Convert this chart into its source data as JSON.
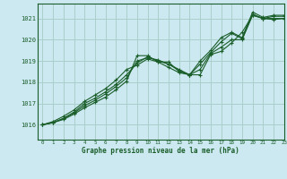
{
  "title": "Graphe pression niveau de la mer (hPa)",
  "bg_color": "#cce8f0",
  "grid_color": "#aacfca",
  "line_color": "#1a5e2a",
  "xlim": [
    -0.5,
    23
  ],
  "ylim": [
    1015.3,
    1021.7
  ],
  "yticks": [
    1016,
    1017,
    1018,
    1019,
    1020,
    1021
  ],
  "xticks": [
    0,
    1,
    2,
    3,
    4,
    5,
    6,
    7,
    8,
    9,
    10,
    11,
    12,
    13,
    14,
    15,
    16,
    17,
    18,
    19,
    20,
    21,
    22,
    23
  ],
  "series": [
    [
      1016.0,
      1016.1,
      1016.25,
      1016.5,
      1016.8,
      1017.05,
      1017.3,
      1017.65,
      1018.05,
      1019.25,
      1019.25,
      1018.95,
      1018.95,
      1018.5,
      1018.35,
      1018.35,
      1019.3,
      1019.45,
      1019.85,
      1020.35,
      1021.15,
      1021.0,
      1020.95,
      1021.0
    ],
    [
      1016.0,
      1016.1,
      1016.3,
      1016.55,
      1016.9,
      1017.15,
      1017.45,
      1017.8,
      1018.2,
      1019.0,
      1019.15,
      1019.05,
      1018.85,
      1018.6,
      1018.35,
      1018.6,
      1019.35,
      1019.65,
      1020.0,
      1020.0,
      1021.15,
      1021.0,
      1021.0,
      1021.0
    ],
    [
      1016.0,
      1016.1,
      1016.3,
      1016.6,
      1017.0,
      1017.25,
      1017.55,
      1017.9,
      1018.35,
      1018.9,
      1019.2,
      1019.0,
      1018.85,
      1018.55,
      1018.35,
      1018.85,
      1019.4,
      1019.9,
      1020.3,
      1020.05,
      1021.2,
      1021.0,
      1021.1,
      1021.1
    ],
    [
      1016.0,
      1016.15,
      1016.4,
      1016.7,
      1017.1,
      1017.4,
      1017.7,
      1018.1,
      1018.6,
      1018.8,
      1019.1,
      1018.95,
      1018.7,
      1018.45,
      1018.35,
      1019.0,
      1019.5,
      1020.1,
      1020.35,
      1020.1,
      1021.3,
      1021.05,
      1021.15,
      1021.15
    ]
  ]
}
